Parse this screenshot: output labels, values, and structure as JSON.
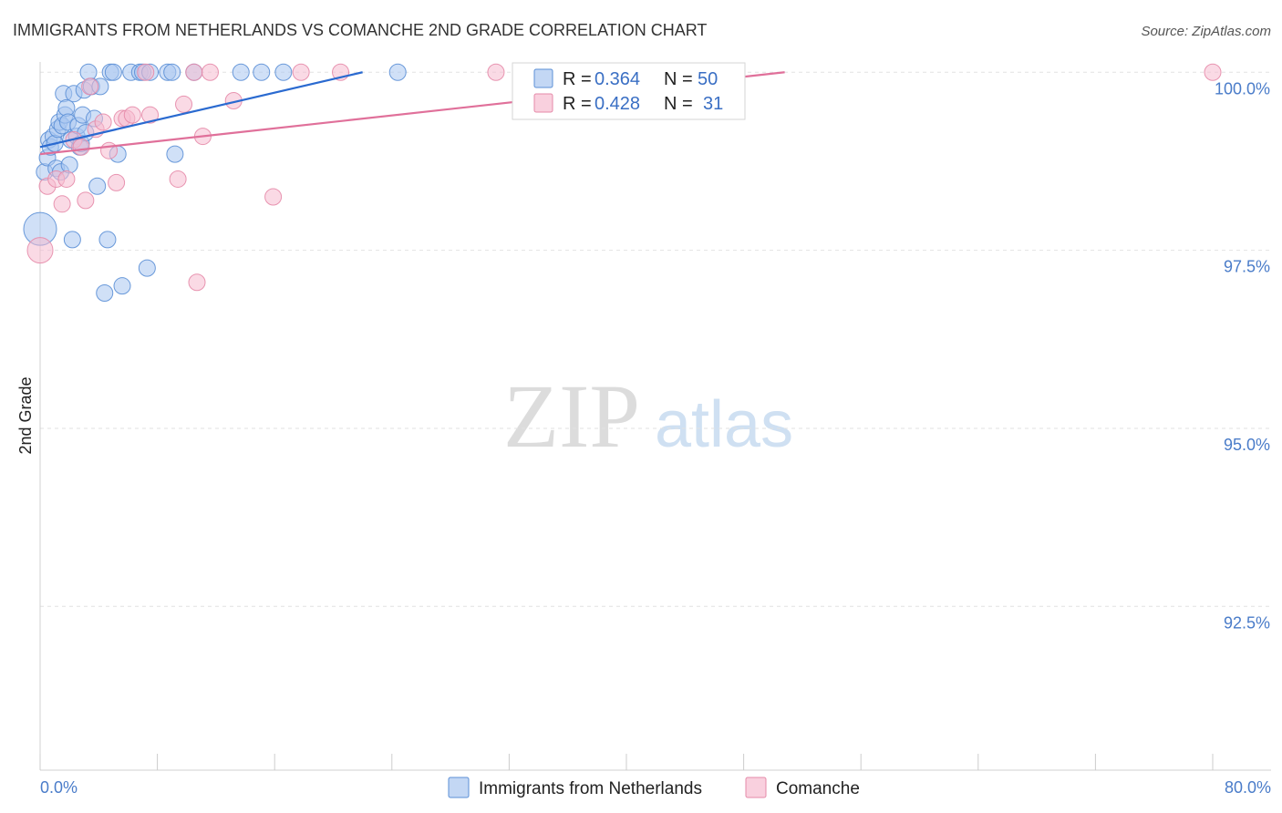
{
  "header": {
    "title": "IMMIGRANTS FROM NETHERLANDS VS COMANCHE 2ND GRADE CORRELATION CHART",
    "source": "Source: ZipAtlas.com"
  },
  "watermark": {
    "zip": "ZIP",
    "atlas": "atlas"
  },
  "legend": {
    "r_label": "R =",
    "n_label": "N =",
    "entries": [
      {
        "r": "0.364",
        "n": "50"
      },
      {
        "r": "0.428",
        "n": "31"
      }
    ]
  },
  "bottom_legend": [
    "Immigrants from Netherlands",
    "Comanche"
  ],
  "colors": {
    "blue_fill": "#a9c6f0",
    "blue_stroke": "#5b8fd6",
    "blue_line": "#2a6ad0",
    "pink_fill": "#f6bcd0",
    "pink_stroke": "#e58aa8",
    "pink_line": "#e0709a",
    "grid": "#e2e2e2",
    "tick_label": "#4a7cc9"
  },
  "chart_data": {
    "type": "scatter",
    "title": "IMMIGRANTS FROM NETHERLANDS VS COMANCHE 2ND GRADE CORRELATION CHART",
    "xlabel": "",
    "ylabel": "2nd Grade",
    "xlim": [
      0,
      80
    ],
    "ylim": [
      90.2,
      100.4
    ],
    "x_tick_labels": [
      {
        "value": 0,
        "label": "0.0%"
      },
      {
        "value": 80,
        "label": "80.0%"
      }
    ],
    "x_tick_marks": [
      0,
      8,
      16,
      24,
      32,
      40,
      48,
      56,
      64,
      72,
      80
    ],
    "y_ticks": [
      {
        "value": 100,
        "label": "100.0%"
      },
      {
        "value": 97.5,
        "label": "97.5%"
      },
      {
        "value": 95,
        "label": "95.0%"
      },
      {
        "value": 92.5,
        "label": "92.5%"
      }
    ],
    "grid": true,
    "legend_placement": "top-center",
    "series": [
      {
        "name": "Immigrants from Netherlands",
        "color": "#5b8fd6",
        "points": [
          {
            "x": 0.0,
            "y": 97.8,
            "s": 18
          },
          {
            "x": 0.3,
            "y": 98.6,
            "s": 9
          },
          {
            "x": 0.5,
            "y": 98.8,
            "s": 9
          },
          {
            "x": 0.6,
            "y": 99.05,
            "s": 9
          },
          {
            "x": 0.7,
            "y": 98.95,
            "s": 9
          },
          {
            "x": 0.9,
            "y": 99.1,
            "s": 9
          },
          {
            "x": 1.0,
            "y": 99.0,
            "s": 9
          },
          {
            "x": 1.1,
            "y": 98.65,
            "s": 9
          },
          {
            "x": 1.2,
            "y": 99.2,
            "s": 9
          },
          {
            "x": 1.3,
            "y": 99.3,
            "s": 9
          },
          {
            "x": 1.4,
            "y": 98.6,
            "s": 9
          },
          {
            "x": 1.5,
            "y": 99.25,
            "s": 9
          },
          {
            "x": 1.6,
            "y": 99.7,
            "s": 9
          },
          {
            "x": 1.7,
            "y": 99.4,
            "s": 9
          },
          {
            "x": 1.8,
            "y": 99.5,
            "s": 9
          },
          {
            "x": 1.9,
            "y": 99.3,
            "s": 9
          },
          {
            "x": 2.0,
            "y": 98.7,
            "s": 9
          },
          {
            "x": 2.1,
            "y": 99.05,
            "s": 9
          },
          {
            "x": 2.2,
            "y": 97.65,
            "s": 9
          },
          {
            "x": 2.3,
            "y": 99.7,
            "s": 9
          },
          {
            "x": 2.5,
            "y": 99.1,
            "s": 9
          },
          {
            "x": 2.6,
            "y": 99.25,
            "s": 9
          },
          {
            "x": 2.7,
            "y": 98.95,
            "s": 9
          },
          {
            "x": 2.8,
            "y": 99.0,
            "s": 9
          },
          {
            "x": 2.9,
            "y": 99.4,
            "s": 9
          },
          {
            "x": 3.0,
            "y": 99.75,
            "s": 9
          },
          {
            "x": 3.1,
            "y": 99.15,
            "s": 9
          },
          {
            "x": 3.3,
            "y": 100.0,
            "s": 9
          },
          {
            "x": 3.5,
            "y": 99.8,
            "s": 9
          },
          {
            "x": 3.7,
            "y": 99.35,
            "s": 9
          },
          {
            "x": 3.9,
            "y": 98.4,
            "s": 9
          },
          {
            "x": 4.1,
            "y": 99.8,
            "s": 9
          },
          {
            "x": 4.4,
            "y": 96.9,
            "s": 9
          },
          {
            "x": 4.6,
            "y": 97.65,
            "s": 9
          },
          {
            "x": 4.8,
            "y": 100.0,
            "s": 9
          },
          {
            "x": 5.0,
            "y": 100.0,
            "s": 9
          },
          {
            "x": 5.3,
            "y": 98.85,
            "s": 9
          },
          {
            "x": 5.6,
            "y": 97.0,
            "s": 9
          },
          {
            "x": 6.2,
            "y": 100.0,
            "s": 9
          },
          {
            "x": 6.8,
            "y": 100.0,
            "s": 9
          },
          {
            "x": 7.0,
            "y": 100.0,
            "s": 9
          },
          {
            "x": 7.3,
            "y": 97.25,
            "s": 9
          },
          {
            "x": 7.5,
            "y": 100.0,
            "s": 9
          },
          {
            "x": 8.7,
            "y": 100.0,
            "s": 9
          },
          {
            "x": 9.0,
            "y": 100.0,
            "s": 9
          },
          {
            "x": 9.2,
            "y": 98.85,
            "s": 9
          },
          {
            "x": 10.5,
            "y": 100.0,
            "s": 9
          },
          {
            "x": 13.7,
            "y": 100.0,
            "s": 9
          },
          {
            "x": 15.1,
            "y": 100.0,
            "s": 9
          },
          {
            "x": 16.6,
            "y": 100.0,
            "s": 9
          },
          {
            "x": 24.4,
            "y": 100.0,
            "s": 9
          }
        ],
        "trend": {
          "x": [
            0,
            22
          ],
          "y": [
            98.95,
            100.0
          ]
        }
      },
      {
        "name": "Comanche",
        "color": "#e58aa8",
        "points": [
          {
            "x": 0.0,
            "y": 97.5,
            "s": 14
          },
          {
            "x": 0.5,
            "y": 98.4,
            "s": 9
          },
          {
            "x": 1.1,
            "y": 98.5,
            "s": 9
          },
          {
            "x": 1.5,
            "y": 98.15,
            "s": 9
          },
          {
            "x": 1.8,
            "y": 98.5,
            "s": 9
          },
          {
            "x": 2.3,
            "y": 99.05,
            "s": 9
          },
          {
            "x": 2.8,
            "y": 98.95,
            "s": 9
          },
          {
            "x": 3.1,
            "y": 98.2,
            "s": 9
          },
          {
            "x": 3.4,
            "y": 99.8,
            "s": 9
          },
          {
            "x": 3.8,
            "y": 99.2,
            "s": 9
          },
          {
            "x": 4.3,
            "y": 99.3,
            "s": 9
          },
          {
            "x": 4.7,
            "y": 98.9,
            "s": 9
          },
          {
            "x": 5.2,
            "y": 98.45,
            "s": 9
          },
          {
            "x": 5.6,
            "y": 99.35,
            "s": 9
          },
          {
            "x": 5.9,
            "y": 99.35,
            "s": 9
          },
          {
            "x": 6.3,
            "y": 99.4,
            "s": 9
          },
          {
            "x": 7.2,
            "y": 100.0,
            "s": 9
          },
          {
            "x": 7.5,
            "y": 99.4,
            "s": 9
          },
          {
            "x": 9.4,
            "y": 98.5,
            "s": 9
          },
          {
            "x": 9.8,
            "y": 99.55,
            "s": 9
          },
          {
            "x": 10.5,
            "y": 100.0,
            "s": 9
          },
          {
            "x": 10.7,
            "y": 97.05,
            "s": 9
          },
          {
            "x": 11.1,
            "y": 99.1,
            "s": 9
          },
          {
            "x": 11.6,
            "y": 100.0,
            "s": 9
          },
          {
            "x": 13.2,
            "y": 99.6,
            "s": 9
          },
          {
            "x": 15.9,
            "y": 98.25,
            "s": 9
          },
          {
            "x": 17.8,
            "y": 100.0,
            "s": 9
          },
          {
            "x": 20.5,
            "y": 100.0,
            "s": 9
          },
          {
            "x": 31.1,
            "y": 100.0,
            "s": 9
          },
          {
            "x": 33.0,
            "y": 100.0,
            "s": 9
          },
          {
            "x": 80.0,
            "y": 100.0,
            "s": 9
          }
        ],
        "trend": {
          "x": [
            0,
            50.8
          ],
          "y": [
            98.85,
            100.0
          ]
        }
      }
    ]
  }
}
